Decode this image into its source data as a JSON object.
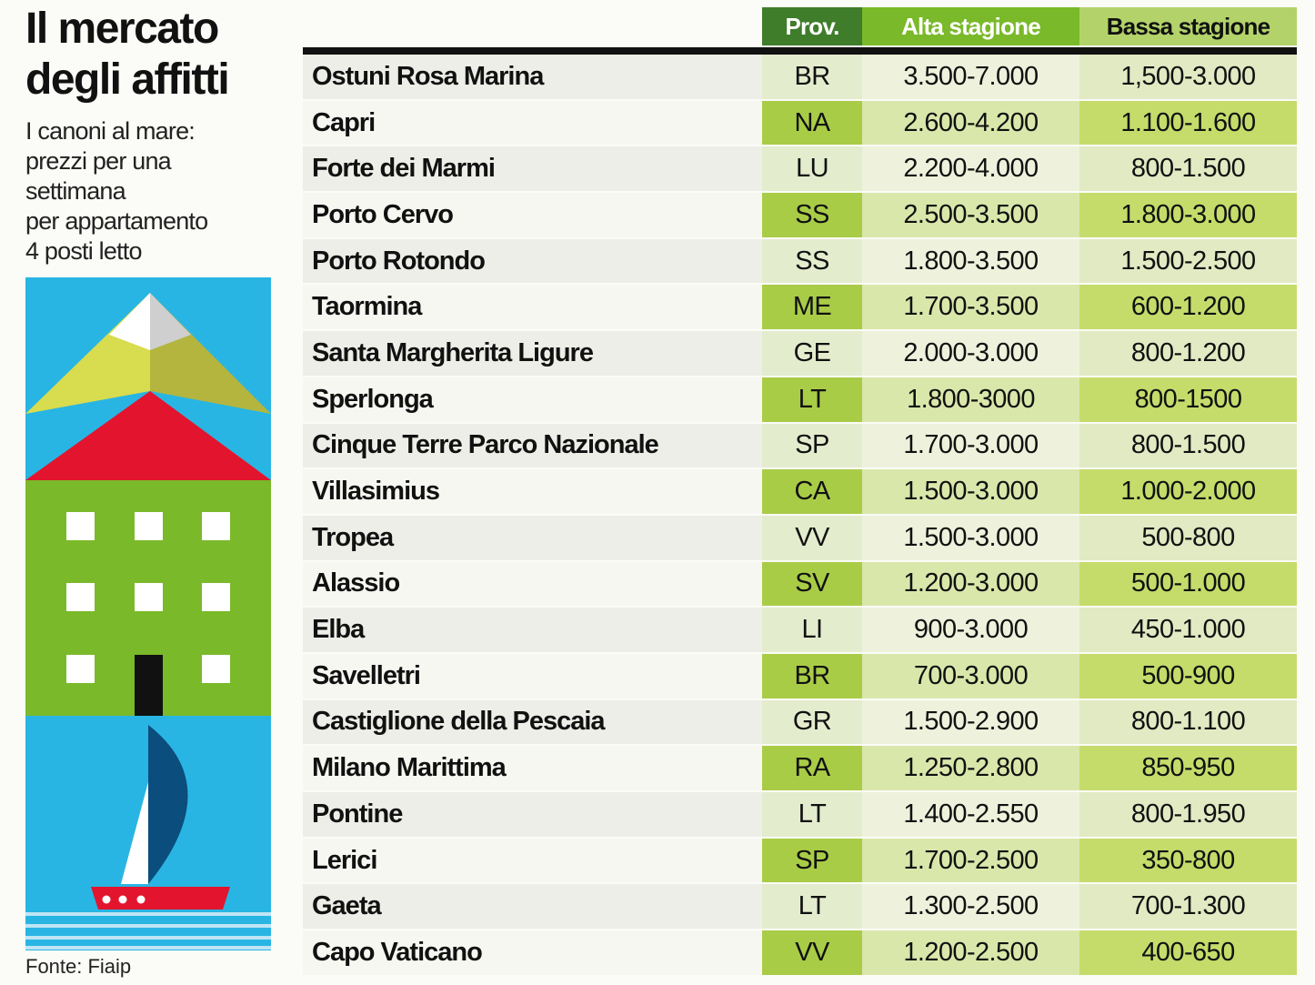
{
  "header": {
    "title_lines": [
      "Il mercato",
      "degli affitti"
    ],
    "subtitle_lines": [
      "I canoni al mare:",
      "prezzi per una",
      "settimana",
      "per appartamento",
      "4 posti letto"
    ],
    "source": "Fonte: Fiaip"
  },
  "table": {
    "columns": [
      "Prov.",
      "Alta stagione",
      "Bassa stagione"
    ],
    "rows": [
      [
        "Ostuni Rosa Marina",
        "BR",
        "3.500-7.000",
        "1,500-3.000"
      ],
      [
        "Capri",
        "NA",
        "2.600-4.200",
        "1.100-1.600"
      ],
      [
        "Forte dei Marmi",
        "LU",
        "2.200-4.000",
        "800-1.500"
      ],
      [
        "Porto Cervo",
        "SS",
        "2.500-3.500",
        "1.800-3.000"
      ],
      [
        "Porto Rotondo",
        "SS",
        "1.800-3.500",
        "1.500-2.500"
      ],
      [
        "Taormina",
        "ME",
        "1.700-3.500",
        "600-1.200"
      ],
      [
        "Santa Margherita Ligure",
        "GE",
        "2.000-3.000",
        "800-1.200"
      ],
      [
        "Sperlonga",
        "LT",
        "1.800-3000",
        "800-1500"
      ],
      [
        "Cinque Terre Parco Nazionale",
        "SP",
        "1.700-3.000",
        "800-1.500"
      ],
      [
        "Villasimius",
        "CA",
        "1.500-3.000",
        "1.000-2.000"
      ],
      [
        "Tropea",
        "VV",
        "1.500-3.000",
        "500-800"
      ],
      [
        "Alassio",
        "SV",
        "1.200-3.000",
        "500-1.000"
      ],
      [
        "Elba",
        "LI",
        "900-3.000",
        "450-1.000"
      ],
      [
        "Savelletri",
        "BR",
        "700-3.000",
        "500-900"
      ],
      [
        "Castiglione della Pescaia",
        "GR",
        "1.500-2.900",
        "800-1.100"
      ],
      [
        "Milano Marittima",
        "RA",
        "1.250-2.800",
        "850-950"
      ],
      [
        "Pontine",
        "LT",
        "1.400-2.550",
        "800-1.950"
      ],
      [
        "Lerici",
        "SP",
        "1.700-2.500",
        "350-800"
      ],
      [
        "Gaeta",
        "LT",
        "1.300-2.500",
        "700-1.300"
      ],
      [
        "Capo Vaticano",
        "VV",
        "1.200-2.500",
        "400-650"
      ]
    ]
  }
}
